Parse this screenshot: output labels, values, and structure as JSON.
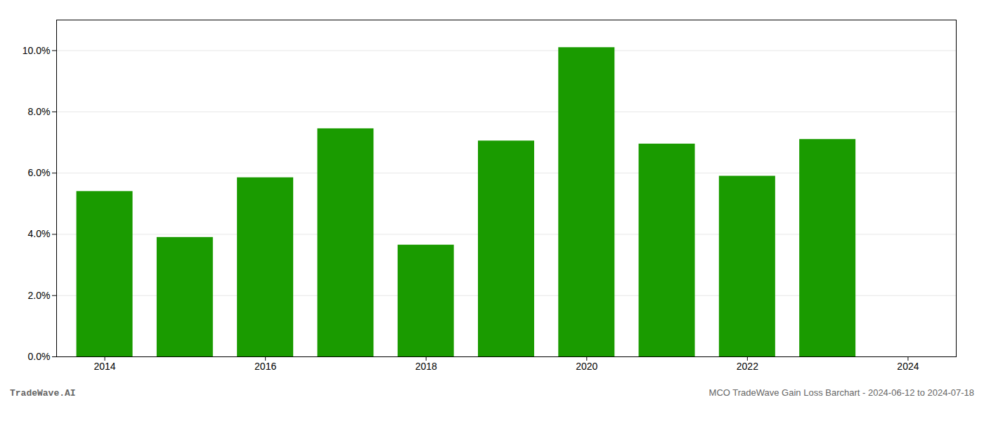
{
  "chart_data": {
    "type": "bar",
    "x": [
      2014,
      2015,
      2016,
      2017,
      2018,
      2019,
      2020,
      2021,
      2022,
      2023
    ],
    "values": [
      0.054,
      0.039,
      0.0585,
      0.0745,
      0.0365,
      0.0705,
      0.101,
      0.0695,
      0.059,
      0.071
    ],
    "color": "#1a9b00",
    "xlim": [
      2013.4,
      2024.6
    ],
    "xticks": [
      2014,
      2016,
      2018,
      2020,
      2022,
      2024
    ],
    "ylim": [
      0,
      0.11
    ],
    "yticks": [
      {
        "value": 0.0,
        "label": "0.0%"
      },
      {
        "value": 0.02,
        "label": "2.0%"
      },
      {
        "value": 0.04,
        "label": "4.0%"
      },
      {
        "value": 0.06,
        "label": "6.0%"
      },
      {
        "value": 0.08,
        "label": "8.0%"
      },
      {
        "value": 0.1,
        "label": "10.0%"
      }
    ],
    "grid": true,
    "annotations": [
      "TradeWave.AI",
      "MCO TradeWave Gain Loss Barchart - 2024-06-12 to 2024-07-18"
    ]
  }
}
